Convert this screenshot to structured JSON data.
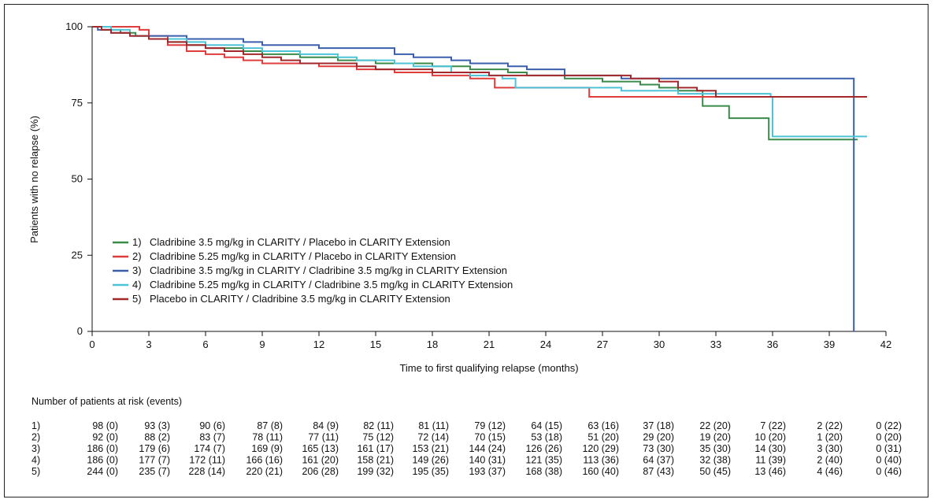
{
  "chart_data": {
    "type": "line",
    "title": "",
    "xlabel": "Time to first qualifying relapse (months)",
    "ylabel": "Patients with no relapse (%)",
    "xlim": [
      0,
      42
    ],
    "ylim": [
      0,
      100
    ],
    "x_ticks": [
      0,
      3,
      6,
      9,
      12,
      15,
      18,
      21,
      24,
      27,
      30,
      33,
      36,
      39,
      42
    ],
    "y_ticks": [
      0,
      25,
      50,
      75,
      100
    ],
    "grid": false,
    "legend_position": "bottom-left",
    "series": [
      {
        "name": "Cladribine 3.5 mg/kg in CLARITY / Placebo in CLARITY Extension",
        "legend_number": "1)",
        "color": "#3a8a4a",
        "points": [
          [
            0,
            100
          ],
          [
            0.5,
            99
          ],
          [
            1.5,
            98
          ],
          [
            2.3,
            97
          ],
          [
            3,
            96
          ],
          [
            4,
            95
          ],
          [
            5,
            94
          ],
          [
            6,
            93
          ],
          [
            7,
            93
          ],
          [
            8,
            92
          ],
          [
            9,
            91
          ],
          [
            10,
            91
          ],
          [
            11,
            90
          ],
          [
            12,
            90
          ],
          [
            13,
            89
          ],
          [
            14,
            89
          ],
          [
            15,
            88
          ],
          [
            16,
            88
          ],
          [
            18,
            87
          ],
          [
            19,
            87
          ],
          [
            20,
            86
          ],
          [
            21,
            86
          ],
          [
            22,
            85
          ],
          [
            23,
            84
          ],
          [
            24,
            84
          ],
          [
            25,
            83
          ],
          [
            27,
            82
          ],
          [
            29,
            81
          ],
          [
            30,
            80
          ],
          [
            31,
            79
          ],
          [
            32.3,
            74
          ],
          [
            33.7,
            70
          ],
          [
            35.8,
            63
          ],
          [
            40.5,
            63
          ]
        ]
      },
      {
        "name": "Cladribine 5.25 mg/kg in CLARITY / Placebo in CLARITY Extension",
        "legend_number": "2)",
        "color": "#e03c3c",
        "points": [
          [
            0,
            100
          ],
          [
            2.5,
            99
          ],
          [
            3,
            97
          ],
          [
            4,
            94
          ],
          [
            5,
            92
          ],
          [
            6,
            91
          ],
          [
            7,
            90
          ],
          [
            8,
            89
          ],
          [
            9,
            88
          ],
          [
            10,
            88
          ],
          [
            12,
            87
          ],
          [
            14,
            86
          ],
          [
            16,
            85
          ],
          [
            18,
            84
          ],
          [
            20,
            83
          ],
          [
            21.3,
            80
          ],
          [
            24,
            80
          ],
          [
            25,
            80
          ],
          [
            26.3,
            77
          ],
          [
            30,
            77
          ],
          [
            33,
            77
          ],
          [
            36,
            77
          ],
          [
            40.5,
            77
          ]
        ]
      },
      {
        "name": "Cladribine 3.5 mg/kg in CLARITY / Cladribine 3.5 mg/kg in CLARITY Extension",
        "legend_number": "3)",
        "color": "#3a5fad",
        "points": [
          [
            0,
            100
          ],
          [
            0.3,
            99
          ],
          [
            1,
            98
          ],
          [
            2,
            97
          ],
          [
            4,
            97
          ],
          [
            5,
            96
          ],
          [
            7,
            96
          ],
          [
            8,
            95
          ],
          [
            9,
            94
          ],
          [
            11,
            94
          ],
          [
            12,
            93
          ],
          [
            15,
            93
          ],
          [
            16,
            91
          ],
          [
            17,
            90
          ],
          [
            19,
            89
          ],
          [
            20,
            88
          ],
          [
            22,
            87
          ],
          [
            23,
            86
          ],
          [
            25,
            84
          ],
          [
            27,
            84
          ],
          [
            28,
            83
          ],
          [
            30,
            83
          ],
          [
            32,
            83
          ],
          [
            35,
            83
          ],
          [
            40.3,
            83
          ],
          [
            40.3,
            0
          ]
        ]
      },
      {
        "name": "Cladribine 5.25 mg/kg in CLARITY / Cladribine 3.5 mg/kg in CLARITY Extension",
        "legend_number": "4)",
        "color": "#4dc3d7",
        "points": [
          [
            0,
            100
          ],
          [
            1,
            99
          ],
          [
            2,
            97
          ],
          [
            3,
            96
          ],
          [
            5,
            95
          ],
          [
            6,
            94
          ],
          [
            8,
            93
          ],
          [
            9,
            92
          ],
          [
            11,
            91
          ],
          [
            13,
            90
          ],
          [
            14,
            89
          ],
          [
            16,
            88
          ],
          [
            17,
            87
          ],
          [
            19,
            85
          ],
          [
            20,
            84
          ],
          [
            21,
            84
          ],
          [
            21.7,
            83
          ],
          [
            22.4,
            80
          ],
          [
            25,
            80
          ],
          [
            26,
            80
          ],
          [
            28,
            79
          ],
          [
            29,
            79
          ],
          [
            31,
            78
          ],
          [
            33,
            78
          ],
          [
            35.9,
            77
          ],
          [
            36,
            64
          ],
          [
            41,
            64
          ]
        ]
      },
      {
        "name": "Placebo in CLARITY / Cladribine 3.5 mg/kg in CLARITY Extension",
        "legend_number": "5)",
        "color": "#a3282c",
        "points": [
          [
            0,
            100
          ],
          [
            0.5,
            99
          ],
          [
            1,
            98
          ],
          [
            2,
            97
          ],
          [
            3,
            96
          ],
          [
            4,
            95
          ],
          [
            5,
            94
          ],
          [
            6,
            93
          ],
          [
            7,
            92
          ],
          [
            8,
            91
          ],
          [
            9,
            90
          ],
          [
            10,
            89
          ],
          [
            11,
            88
          ],
          [
            13,
            88
          ],
          [
            14,
            87
          ],
          [
            15,
            86
          ],
          [
            17,
            86
          ],
          [
            18,
            85
          ],
          [
            20,
            85
          ],
          [
            21,
            84
          ],
          [
            23,
            84
          ],
          [
            25,
            84
          ],
          [
            27,
            84
          ],
          [
            28.5,
            83
          ],
          [
            30,
            82
          ],
          [
            31,
            80
          ],
          [
            32,
            79
          ],
          [
            33,
            77
          ],
          [
            36,
            77
          ],
          [
            41,
            77
          ]
        ]
      }
    ],
    "at_risk": {
      "heading": "Number of patients at risk (events)",
      "rows": [
        {
          "label": "1)",
          "values": [
            "98 (0)",
            "93 (3)",
            "90 (6)",
            "87 (8)",
            "84 (9)",
            "82 (11)",
            "81 (11)",
            "79 (12)",
            "64 (15)",
            "63 (16)",
            "37 (18)",
            "22 (20)",
            "7 (22)",
            "2 (22)",
            "0 (22)"
          ]
        },
        {
          "label": "2)",
          "values": [
            "92 (0)",
            "88 (2)",
            "83 (7)",
            "78 (11)",
            "77 (11)",
            "75 (12)",
            "72 (14)",
            "70 (15)",
            "53 (18)",
            "51 (20)",
            "29 (20)",
            "19 (20)",
            "10 (20)",
            "1 (20)",
            "0 (20)"
          ]
        },
        {
          "label": "3)",
          "values": [
            "186 (0)",
            "179 (6)",
            "174 (7)",
            "169 (9)",
            "165 (13)",
            "161 (17)",
            "153 (21)",
            "144 (24)",
            "126 (26)",
            "120 (29)",
            "73 (30)",
            "35 (30)",
            "14 (30)",
            "3 (30)",
            "0 (31)"
          ]
        },
        {
          "label": "4)",
          "values": [
            "186 (0)",
            "177 (7)",
            "172 (11)",
            "166 (16)",
            "161 (20)",
            "158 (21)",
            "149 (26)",
            "140 (31)",
            "121 (35)",
            "113 (36)",
            "64 (37)",
            "32 (38)",
            "11 (39)",
            "2 (40)",
            "0 (40)"
          ]
        },
        {
          "label": "5)",
          "values": [
            "244 (0)",
            "235 (7)",
            "228 (14)",
            "220 (21)",
            "206 (28)",
            "199 (32)",
            "195 (35)",
            "193 (37)",
            "168 (38)",
            "160 (40)",
            "87 (43)",
            "50 (45)",
            "13 (46)",
            "4 (46)",
            "0 (46)"
          ]
        }
      ]
    }
  }
}
